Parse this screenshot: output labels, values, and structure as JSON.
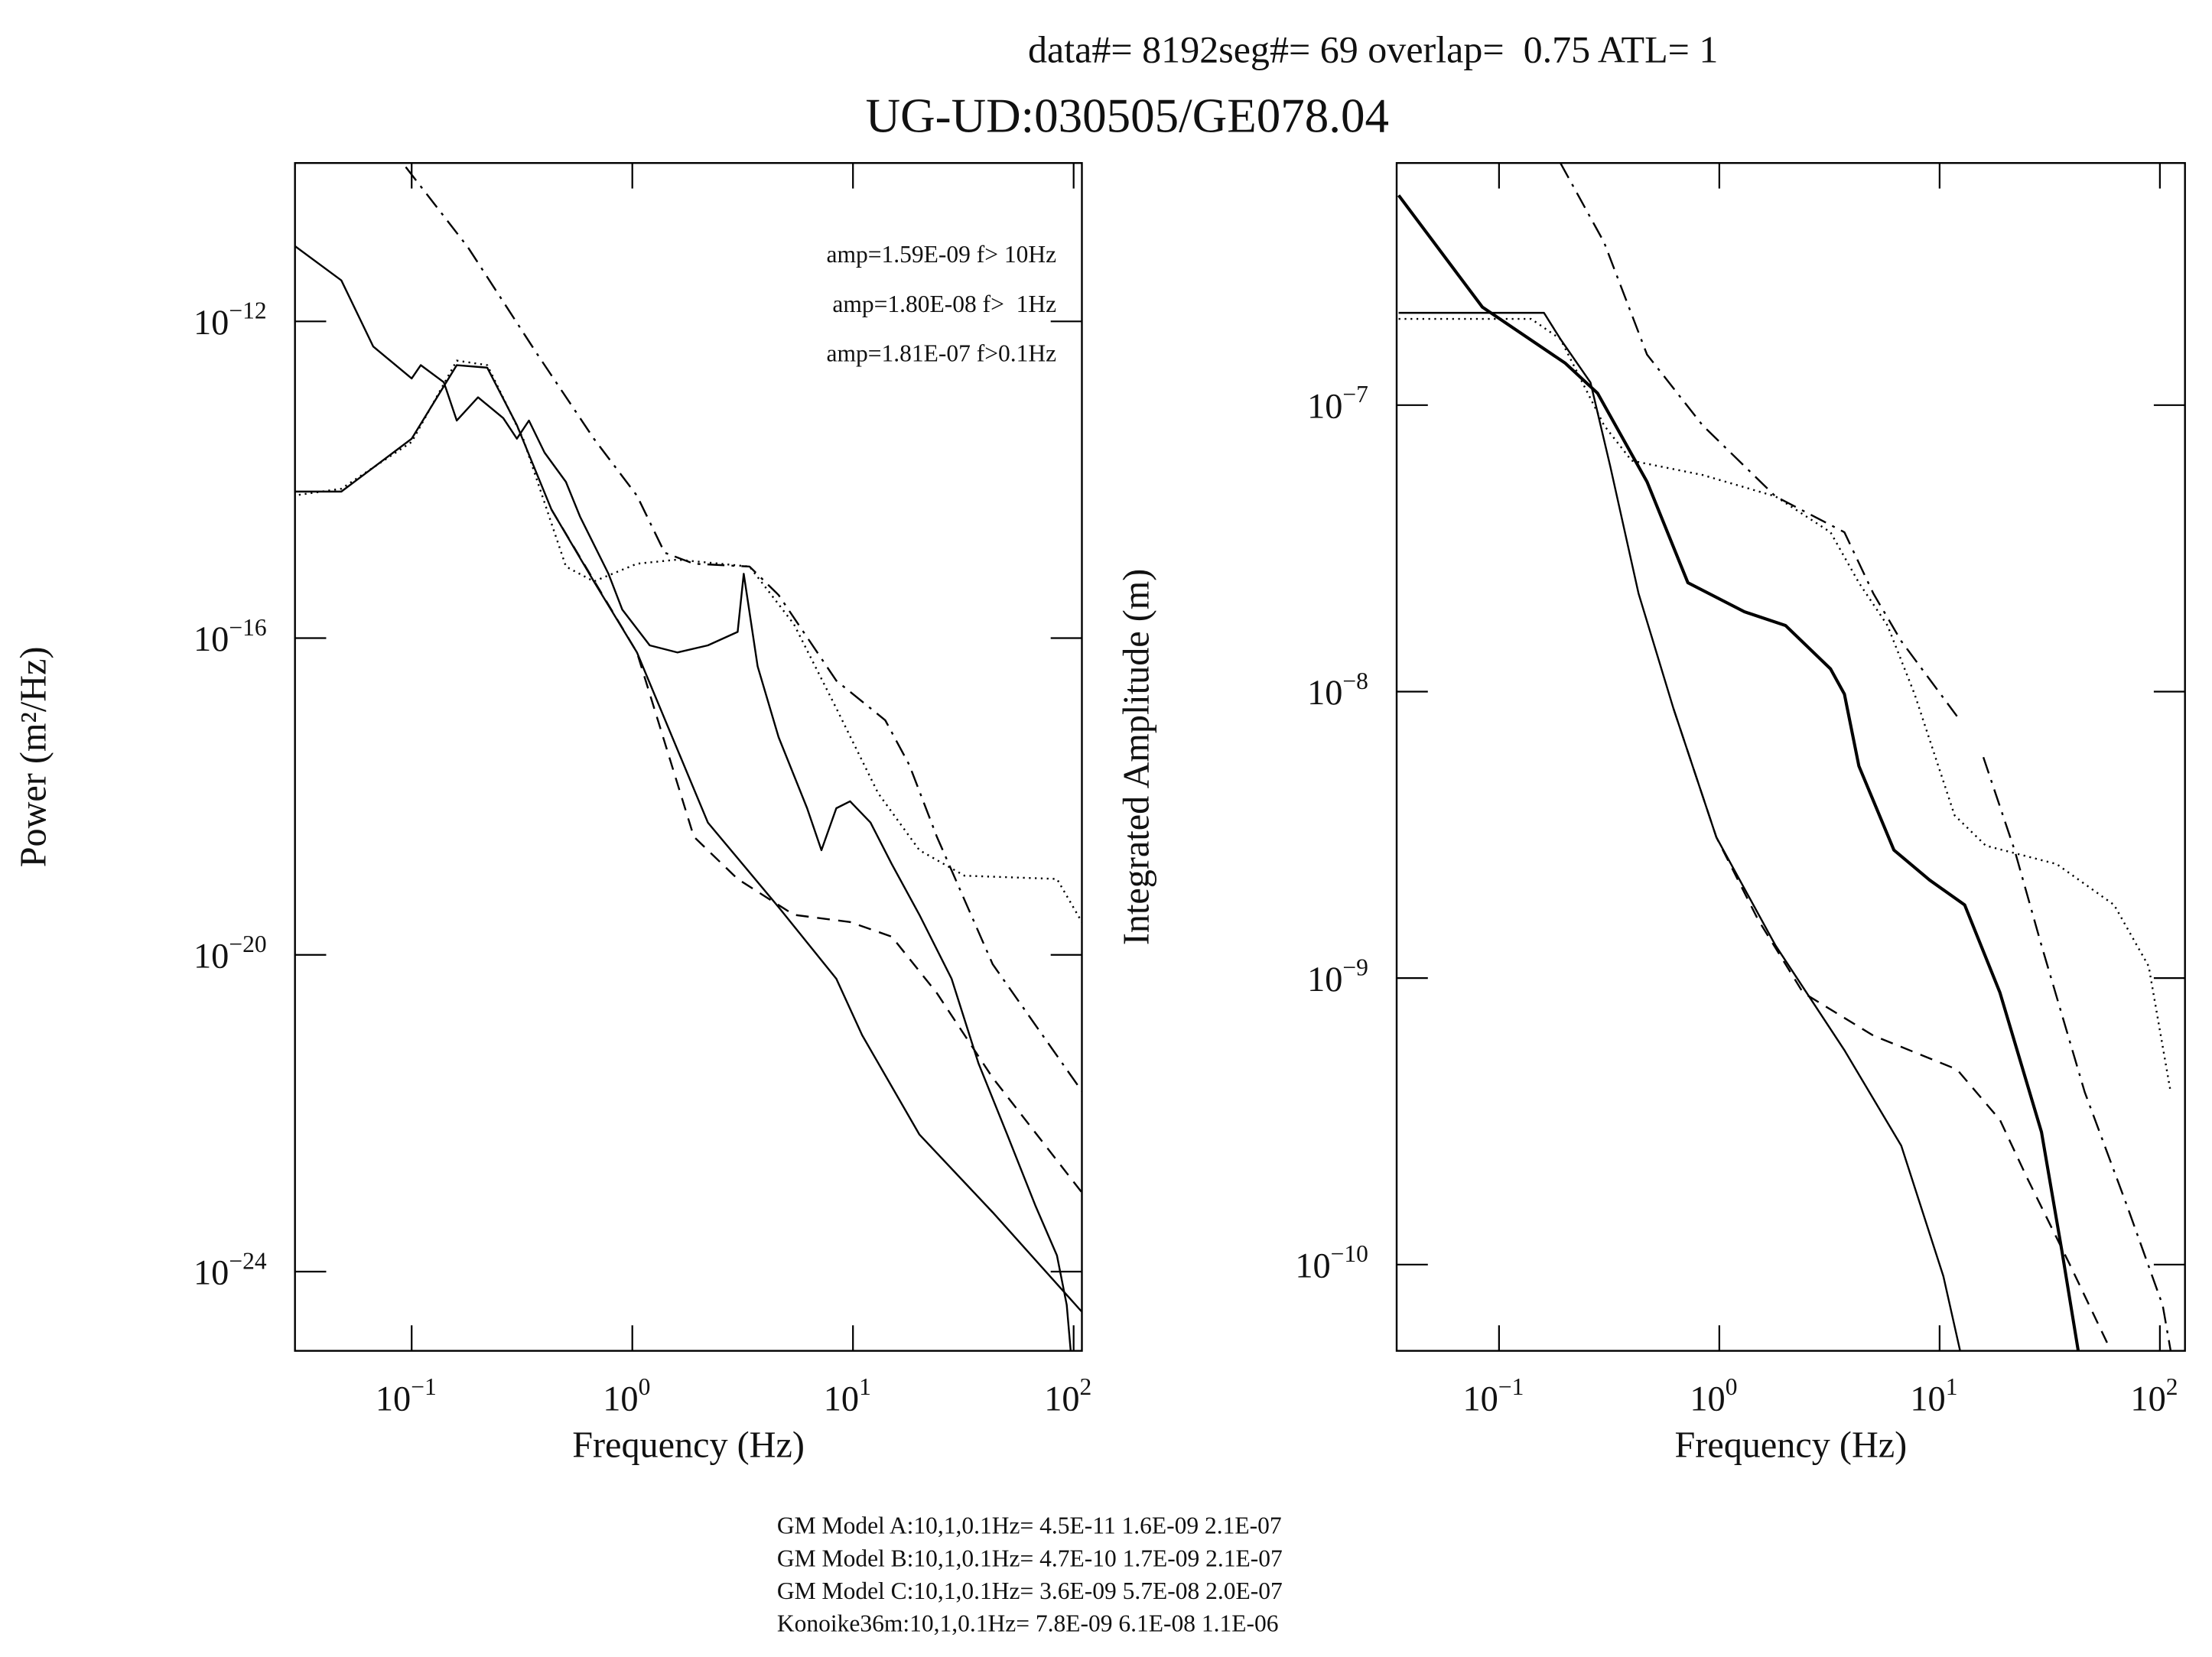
{
  "header": "data#= 8192seg#= 69 overlap=  0.75 ATL= 1",
  "title": "UG-UD:030505/GE078.04",
  "footer": [
    "GM Model A:10,1,0.1Hz= 4.5E-11 1.6E-09 2.1E-07",
    "GM Model B:10,1,0.1Hz= 4.7E-10 1.7E-09 2.1E-07",
    "GM Model C:10,1,0.1Hz= 3.6E-09 5.7E-08 2.0E-07",
    "Konoike36m:10,1,0.1Hz= 7.8E-09 6.1E-08 1.1E-06"
  ],
  "chart_data": [
    {
      "type": "line",
      "xlabel": "Frequency (Hz)",
      "ylabel": "Power (m²/Hz)",
      "xscale": "log",
      "yscale": "log",
      "xlim": [
        0.0296,
        109
      ],
      "ylim": [
        1e-25,
        1e-10
      ],
      "xticks": [
        {
          "value": 0.1,
          "label": "10",
          "exponent": "−1"
        },
        {
          "value": 1,
          "label": "10",
          "exponent": "0"
        },
        {
          "value": 10,
          "label": "10",
          "exponent": "1"
        },
        {
          "value": 100,
          "label": "10",
          "exponent": "2"
        }
      ],
      "yticks": [
        {
          "value": 1e-12,
          "label": "10",
          "exponent": "−12"
        },
        {
          "value": 1e-16,
          "label": "10",
          "exponent": "−16"
        },
        {
          "value": 1e-20,
          "label": "10",
          "exponent": "−20"
        },
        {
          "value": 1e-24,
          "label": "10",
          "exponent": "−24"
        }
      ],
      "annotations": [
        "amp=1.59E-09 f> 10Hz",
        "amp=1.80E-08 f>  1Hz",
        "amp=1.81E-07 f>0.1Hz"
      ],
      "series": [
        {
          "color": "#000",
          "dash": "solid",
          "x": [
            0.029,
            0.048,
            0.067,
            0.1,
            0.11,
            0.14,
            0.16,
            0.2,
            0.26,
            0.3,
            0.34,
            0.4,
            0.5,
            0.58,
            0.78,
            0.9,
            1.2,
            1.6,
            2.2,
            3,
            3.2,
            3.7,
            4.6,
            6.2,
            7.2,
            8.4,
            9.7,
            12,
            15,
            20,
            28,
            37,
            50,
            67,
            84,
            93,
            97
          ],
          "values": [
            9.3e-12,
            3.3e-12,
            4.8e-13,
            1.9e-13,
            2.8e-13,
            1.7e-13,
            5.6e-14,
            1.1e-13,
            6e-14,
            3.3e-14,
            5.6e-14,
            2.2e-14,
            9.4e-15,
            3.4e-15,
            6.5e-16,
            2.3e-16,
            8.1e-17,
            6.6e-17,
            8.1e-17,
            1.2e-16,
            6.5e-16,
            4.4e-17,
            5.6e-18,
            7.1e-19,
            2.1e-19,
            7.1e-19,
            8.7e-19,
            4.7e-19,
            1.4e-19,
            3.2e-20,
            5e-21,
            4.3e-22,
            5.4e-23,
            6.9e-24,
            1.6e-24,
            3.8e-25,
            1e-25
          ]
        },
        {
          "color": "#000",
          "dash": "solid",
          "x": [
            0.029,
            0.048,
            0.1,
            0.16,
            0.22,
            0.3,
            0.43,
            0.67,
            1.05,
            2.2,
            4.6,
            8.4,
            11,
            20,
            43,
            109
          ],
          "values": [
            7.1e-15,
            7.1e-15,
            3.3e-14,
            2.8e-13,
            2.6e-13,
            4.9e-14,
            4.2e-15,
            5.2e-16,
            6.6e-17,
            4.7e-19,
            4e-20,
            5e-21,
            9.7e-22,
            5.4e-23,
            5.6e-24,
            3.1e-25
          ]
        },
        {
          "color": "#000",
          "dash": "dotted",
          "x": [
            0.029,
            0.048,
            0.1,
            0.16,
            0.22,
            0.32,
            0.5,
            0.67,
            1.05,
            1.6,
            3.4,
            5.4,
            8.4,
            13,
            20,
            32,
            84,
            109
          ],
          "values": [
            6.3e-15,
            7.7e-15,
            3e-14,
            3.2e-13,
            2.8e-13,
            3.3e-14,
            8e-16,
            5.2e-16,
            8.7e-16,
            9.8e-16,
            8e-16,
            1.5e-16,
            1.3e-17,
            1.1e-18,
            2.1e-19,
            1e-19,
            9.1e-20,
            2.6e-20
          ]
        },
        {
          "color": "#000",
          "dash": "dashed",
          "x": [
            0.43,
            1.05,
            1.9,
            3,
            5.4,
            9.7,
            15,
            24,
            43,
            109
          ],
          "values": [
            4.2e-15,
            6.6e-17,
            3.1e-19,
            9.1e-20,
            3.2e-20,
            2.6e-20,
            1.7e-20,
            3.3e-21,
            2.8e-22,
            1e-23
          ]
        },
        {
          "color": "#000",
          "dash": "dashdot",
          "x": [
            0.094,
            0.18,
            0.37,
            0.67,
            1.05,
            1.4,
            1.9,
            3.4,
            4.6,
            8.4,
            14,
            18,
            24,
            43,
            109
          ],
          "values": [
            8.9e-11,
            8.6e-12,
            3.9e-13,
            3.3e-14,
            6.3e-15,
            1.2e-15,
            8.7e-16,
            8e-16,
            3.5e-16,
            2.9e-17,
            9.2e-18,
            2.5e-18,
            3.1e-19,
            7.6e-21,
            1.9e-22
          ]
        }
      ]
    },
    {
      "type": "line",
      "xlabel": "Frequency (Hz)",
      "ylabel": "Integrated Amplitude (m)",
      "xscale": "log",
      "yscale": "log",
      "xlim": [
        0.0343,
        130
      ],
      "ylim": [
        5e-11,
        7e-07
      ],
      "xticks": [
        {
          "value": 0.1,
          "label": "10",
          "exponent": "−1"
        },
        {
          "value": 1,
          "label": "10",
          "exponent": "0"
        },
        {
          "value": 10,
          "label": "10",
          "exponent": "1"
        },
        {
          "value": 100,
          "label": "10",
          "exponent": "2"
        }
      ],
      "yticks": [
        {
          "value": 1e-07,
          "label": "10",
          "exponent": "−7"
        },
        {
          "value": 1e-08,
          "label": "10",
          "exponent": "−8"
        },
        {
          "value": 1e-09,
          "label": "10",
          "exponent": "−9"
        },
        {
          "value": 1e-10,
          "label": "10",
          "exponent": "−10"
        }
      ],
      "series": [
        {
          "color": "#000",
          "dash": "solid",
          "width": 2.2,
          "x": [
            0.035,
            0.084,
            0.2,
            0.28,
            0.47,
            0.72,
            1.3,
            2,
            3.2,
            3.7,
            4.3,
            6.2,
            9,
            13,
            18.8,
            29,
            36,
            42.6
          ],
          "values": [
            5.4e-07,
            2.2e-07,
            1.4e-07,
            1.1e-07,
            5.4e-08,
            2.4e-08,
            1.9e-08,
            1.7e-08,
            1.2e-08,
            9.8e-09,
            5.5e-09,
            2.8e-09,
            2.2e-09,
            1.8e-09,
            8.9e-10,
            2.9e-10,
            1.1e-10,
            5e-11
          ]
        },
        {
          "color": "#000",
          "dash": "solid",
          "x": [
            0.035,
            0.16,
            0.19,
            0.26,
            0.32,
            0.43,
            0.62,
            0.97,
            1.8,
            3.7,
            6.7,
            10.4,
            12.4
          ],
          "values": [
            2.1e-07,
            2.1e-07,
            1.7e-07,
            1.2e-07,
            6.1e-08,
            2.2e-08,
            8.7e-09,
            3.1e-09,
            1.3e-09,
            5.6e-10,
            2.6e-10,
            9.1e-11,
            5e-11
          ]
        },
        {
          "color": "#000",
          "dash": "dashed",
          "x": [
            0.62,
            0.97,
            1.5,
            2.4,
            5,
            12,
            18.8,
            25,
            39,
            60
          ],
          "values": [
            8.7e-09,
            3.1e-09,
            1.6e-09,
            8.9e-10,
            6.3e-10,
            4.8e-10,
            3.2e-10,
            2e-10,
            1e-10,
            5e-11
          ]
        },
        {
          "color": "#000",
          "dash": "dotted",
          "x": [
            0.035,
            0.14,
            0.19,
            0.3,
            0.4,
            0.84,
            1.8,
            3.2,
            4.3,
            5.8,
            7.7,
            11.7,
            16.2,
            34,
            62,
            89,
            112
          ],
          "values": [
            2e-07,
            2e-07,
            1.7e-07,
            8.5e-08,
            6.4e-08,
            5.7e-08,
            4.8e-08,
            3.6e-08,
            2.4e-08,
            1.7e-08,
            9.8e-09,
            3.7e-09,
            2.9e-09,
            2.5e-09,
            1.8e-09,
            1.1e-09,
            4e-10
          ]
        },
        {
          "color": "#000",
          "dash": "dashdot",
          "x": [
            0.19,
            0.3,
            0.47,
            0.84,
            1.8,
            3.7,
            5,
            6.7,
            12,
            14,
            15.8,
            21.9,
            29,
            45.6,
            71,
            103,
            112
          ],
          "values": [
            7e-07,
            3.7e-07,
            1.5e-07,
            8.5e-08,
            4.8e-08,
            3.6e-08,
            2.2e-08,
            1.5e-08,
            8.2e-09,
            null,
            5.9e-09,
            2.8e-09,
            1.3e-09,
            4e-10,
            1.6e-10,
            7.2e-11,
            5e-11
          ]
        }
      ]
    }
  ]
}
